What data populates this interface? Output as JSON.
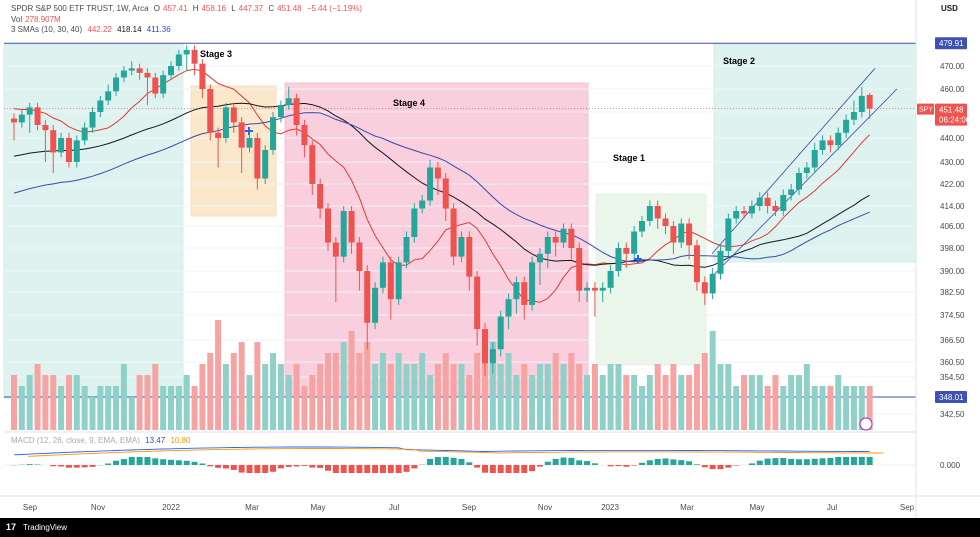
{
  "header": {
    "symbol": "SPDR S&P 500 ETF TRUST, 1W, Arca",
    "open_label": "O",
    "open": "457.41",
    "high_label": "H",
    "high": "458.16",
    "low_label": "L",
    "low": "447.37",
    "close_label": "C",
    "close": "451.48",
    "change": "−5.44 (−1.19%)",
    "vol_label": "Vol",
    "vol": "278.907M",
    "sma_label": "3 SMAs (10, 30, 40)",
    "sma1": "442.22",
    "sma2": "418.14",
    "sma3": "411.36",
    "macd_label": "MACD (12, 26, close, 9, EMA, EMA)",
    "currency": "USD"
  },
  "footer": {
    "logo": "17",
    "brand": "TradingView"
  },
  "colors": {
    "up": "#26a69a",
    "down": "#ef5350",
    "up_vol": "#8fd1c9",
    "down_vol": "#f5a3a3",
    "sma10": "#e53935",
    "sma30": "#131722",
    "sma40": "#3949ab",
    "stage_green": "#d3efe9",
    "stage_orange": "#f9dfb7",
    "stage_pink": "#f8bfd2",
    "stage_lightgreen": "#e3f3e3",
    "hline": "#3f51b5"
  },
  "chart_data": {
    "type": "candlestick",
    "interval": "1W",
    "ylim": [
      335,
      486
    ],
    "y_ticks": [
      "470.00",
      "460.00",
      "450.00",
      "440.00",
      "430.00",
      "422.00",
      "414.00",
      "406.00",
      "398.00",
      "390.00",
      "382.50",
      "374.50",
      "366.50",
      "360.50",
      "354.50",
      "342.50"
    ],
    "x_ticks": [
      "Sep",
      "Nov",
      "2022",
      "Mar",
      "May",
      "Jul",
      "Sep",
      "Nov",
      "2023",
      "Mar",
      "May",
      "Jul",
      "Sep"
    ],
    "price_labels": {
      "high_line": "479.91",
      "last": "451.48",
      "countdown": "06:24:06",
      "ticker": "SPY",
      "low_line": "348.01"
    },
    "annotations": [
      "Stage 3",
      "Stage 4",
      "Stage 1",
      "Stage 2"
    ],
    "macd_tick": "0.000",
    "macd_values": [
      "13.47",
      "10.80"
    ],
    "candles": [
      [
        447.5,
        446.0,
        441.0
      ],
      [
        446.0,
        449.0,
        446.0
      ],
      [
        449.0,
        452.0,
        444.0
      ],
      [
        452.0,
        445.0,
        445.0
      ],
      [
        445.0,
        443.0,
        432.0
      ],
      [
        443.0,
        434.0,
        428.0
      ],
      [
        434.0,
        440.0,
        438.0
      ],
      [
        440.0,
        430.0,
        430.0
      ],
      [
        430.0,
        439.0,
        431.0
      ],
      [
        439.0,
        444.0,
        443.0
      ],
      [
        444.0,
        450.0,
        447.0
      ],
      [
        450.0,
        455.0,
        454.0
      ],
      [
        455.0,
        459.0,
        460.0
      ],
      [
        459.0,
        465.0,
        461.0
      ],
      [
        465.0,
        468.0,
        468.0
      ],
      [
        468.0,
        469.0,
        470.0
      ],
      [
        469.0,
        467.0,
        466.0
      ],
      [
        467.0,
        465.0,
        455.0
      ],
      [
        465.0,
        458.0,
        458.0
      ],
      [
        458.0,
        466.0,
        463.0
      ],
      [
        466.0,
        470.0,
        470.0
      ],
      [
        470.0,
        475.0,
        471.0
      ],
      [
        475.0,
        477.0,
        470.0
      ],
      [
        477.0,
        471.0,
        468.0
      ],
      [
        471.0,
        460.0,
        458.0
      ],
      [
        460.0,
        442.0,
        441.0
      ],
      [
        442.0,
        440.0,
        430.0
      ],
      [
        440.0,
        452.0,
        448.0
      ],
      [
        452.0,
        446.0,
        444.0
      ],
      [
        446.0,
        436.0,
        428.0
      ],
      [
        436.0,
        440.0,
        437.0
      ],
      [
        440.0,
        424.0,
        422.0
      ],
      [
        424.0,
        435.0,
        432.0
      ],
      [
        435.0,
        448.0,
        446.0
      ],
      [
        448.0,
        453.0,
        450.0
      ],
      [
        453.0,
        456.0,
        459.0
      ],
      [
        456.0,
        445.0,
        443.0
      ],
      [
        445.0,
        437.0,
        434.0
      ],
      [
        437.0,
        422.0,
        420.0
      ],
      [
        422.0,
        413.0,
        411.0
      ],
      [
        413.0,
        400.0,
        399.0
      ],
      [
        400.0,
        395.0,
        381.0
      ],
      [
        395.0,
        412.0,
        412.0
      ],
      [
        412.0,
        400.0,
        398.0
      ],
      [
        400.0,
        390.0,
        385.0
      ],
      [
        390.0,
        372.0,
        366.0
      ],
      [
        372.0,
        384.0,
        379.0
      ],
      [
        384.0,
        393.0,
        390.0
      ],
      [
        393.0,
        380.0,
        375.0
      ],
      [
        380.0,
        393.0,
        390.0
      ],
      [
        393.0,
        402.0,
        399.0
      ],
      [
        402.0,
        413.0,
        413.0
      ],
      [
        413.0,
        416.0,
        415.0
      ],
      [
        416.0,
        428.0,
        429.0
      ],
      [
        428.0,
        424.0,
        420.0
      ],
      [
        424.0,
        413.0,
        410.0
      ],
      [
        413.0,
        395.0,
        394.0
      ],
      [
        395.0,
        402.0,
        396.0
      ],
      [
        402.0,
        388.0,
        385.0
      ],
      [
        388.0,
        370.0,
        367.0
      ],
      [
        370.0,
        360.0,
        357.0
      ],
      [
        360.0,
        364.0,
        358.0
      ],
      [
        364.0,
        374.0,
        368.0
      ],
      [
        374.0,
        380.0,
        372.0
      ],
      [
        380.0,
        386.0,
        377.0
      ],
      [
        386.0,
        378.0,
        375.0
      ],
      [
        378.0,
        393.0,
        380.0
      ],
      [
        393.0,
        396.0,
        387.0
      ],
      [
        396.0,
        402.0,
        393.0
      ],
      [
        402.0,
        400.0,
        397.0
      ],
      [
        400.0,
        405.0,
        404.0
      ],
      [
        405.0,
        398.0,
        396.0
      ],
      [
        398.0,
        383.0,
        381.0
      ],
      [
        383.0,
        384.0,
        381.0
      ],
      [
        384.0,
        383.0,
        376.0
      ],
      [
        383.0,
        384.0,
        381.0
      ],
      [
        384.0,
        390.0,
        388.0
      ],
      [
        390.0,
        398.0,
        395.0
      ],
      [
        398.0,
        396.0,
        393.0
      ],
      [
        396.0,
        404.0,
        402.0
      ],
      [
        404.0,
        408.0,
        406.0
      ],
      [
        408.0,
        414.0,
        412.0
      ],
      [
        414.0,
        409.0,
        407.0
      ],
      [
        409.0,
        406.0,
        405.0
      ],
      [
        406.0,
        400.0,
        398.0
      ],
      [
        400.0,
        407.0,
        404.0
      ],
      [
        407.0,
        399.0,
        396.0
      ],
      [
        399.0,
        386.0,
        385.0
      ],
      [
        386.0,
        382.0,
        380.0
      ],
      [
        382.0,
        389.0,
        383.0
      ],
      [
        389.0,
        397.0,
        395.0
      ],
      [
        397.0,
        409.0,
        408.0
      ],
      [
        409.0,
        412.0,
        411.0
      ],
      [
        412.0,
        411.0,
        411.0
      ],
      [
        411.0,
        414.0,
        413.0
      ],
      [
        414.0,
        417.0,
        416.0
      ],
      [
        417.0,
        414.0,
        413.0
      ],
      [
        414.0,
        412.0,
        412.0
      ],
      [
        412.0,
        418.0,
        415.0
      ],
      [
        418.0,
        420.0,
        418.0
      ],
      [
        420.0,
        426.0,
        425.0
      ],
      [
        426.0,
        428.0,
        428.0
      ],
      [
        428.0,
        435.0,
        436.0
      ],
      [
        435.0,
        439.0,
        438.0
      ],
      [
        439.0,
        437.0,
        436.0
      ],
      [
        437.0,
        442.0,
        442.0
      ],
      [
        442.0,
        447.0,
        447.0
      ],
      [
        447.0,
        450.0,
        453.0
      ],
      [
        450.0,
        457.0,
        459.0
      ],
      [
        457.41,
        451.48,
        458.16,
        447.37
      ]
    ],
    "volume": [
      0.5,
      0.4,
      0.5,
      0.6,
      0.5,
      0.5,
      0.4,
      0.5,
      0.5,
      0.4,
      0.3,
      0.4,
      0.4,
      0.4,
      0.6,
      0.3,
      0.5,
      0.5,
      0.6,
      0.4,
      0.4,
      0.4,
      0.5,
      0.4,
      0.6,
      0.7,
      1.0,
      0.6,
      0.7,
      0.8,
      0.5,
      0.8,
      0.6,
      0.7,
      0.6,
      0.5,
      0.6,
      0.4,
      0.5,
      0.6,
      0.7,
      0.7,
      0.8,
      0.9,
      0.7,
      0.8,
      0.6,
      0.7,
      0.6,
      0.7,
      0.6,
      0.6,
      0.7,
      0.5,
      0.6,
      0.7,
      0.6,
      0.6,
      0.5,
      0.7,
      0.8,
      0.8,
      0.6,
      0.7,
      0.5,
      0.6,
      0.5,
      0.6,
      0.6,
      0.7,
      0.6,
      0.7,
      0.6,
      0.5,
      0.6,
      0.5,
      0.6,
      0.6,
      0.5,
      0.5,
      0.4,
      0.5,
      0.6,
      0.5,
      0.6,
      0.5,
      0.5,
      0.6,
      0.7,
      0.9,
      0.6,
      0.6,
      0.4,
      0.5,
      0.5,
      0.5,
      0.4,
      0.5,
      0.4,
      0.5,
      0.5,
      0.6,
      0.4,
      0.4,
      0.4,
      0.5,
      0.4,
      0.4,
      0.4,
      0.4,
      0.4
    ]
  }
}
